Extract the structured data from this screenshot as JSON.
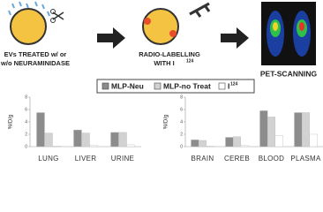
{
  "diagram": {
    "step1": [
      "EVs TREATED w/ or",
      "w/o NEURAMINIDASE"
    ],
    "step2": [
      "RADIO-LABELLING",
      "WITH I"
    ],
    "step2_sup": "124",
    "step3": "PET-SCANNING"
  },
  "legend": [
    {
      "name": "MLP-Neu",
      "color": "#8c8c8c"
    },
    {
      "name": "MLP-no Treat",
      "color": "#d2d2d2"
    },
    {
      "name": "I",
      "sup": "124",
      "color": "#ffffff"
    }
  ],
  "chart_data": [
    {
      "type": "bar",
      "y_label": "%ID/g",
      "categories": [
        "LUNG",
        "LIVER",
        "URINE"
      ],
      "ylim": [
        0,
        8
      ],
      "yticks": [
        0,
        2,
        4,
        6,
        8
      ],
      "series": [
        {
          "values": [
            5.5,
            2.7,
            2.3
          ]
        },
        {
          "values": [
            2.2,
            2.2,
            2.3
          ]
        },
        {
          "values": [
            0.1,
            0.2,
            0.3
          ]
        }
      ]
    },
    {
      "type": "bar",
      "y_label": "%ID/g",
      "categories": [
        "BRAIN",
        "CEREB",
        "BLOOD",
        "PLASMA"
      ],
      "ylim": [
        0,
        8
      ],
      "yticks": [
        0,
        2,
        4,
        6,
        8
      ],
      "series": [
        {
          "values": [
            1.1,
            1.5,
            5.8,
            5.5
          ]
        },
        {
          "values": [
            1.0,
            1.6,
            4.8,
            5.5
          ]
        },
        {
          "values": [
            0.1,
            0.2,
            1.8,
            2.0
          ]
        }
      ]
    }
  ]
}
